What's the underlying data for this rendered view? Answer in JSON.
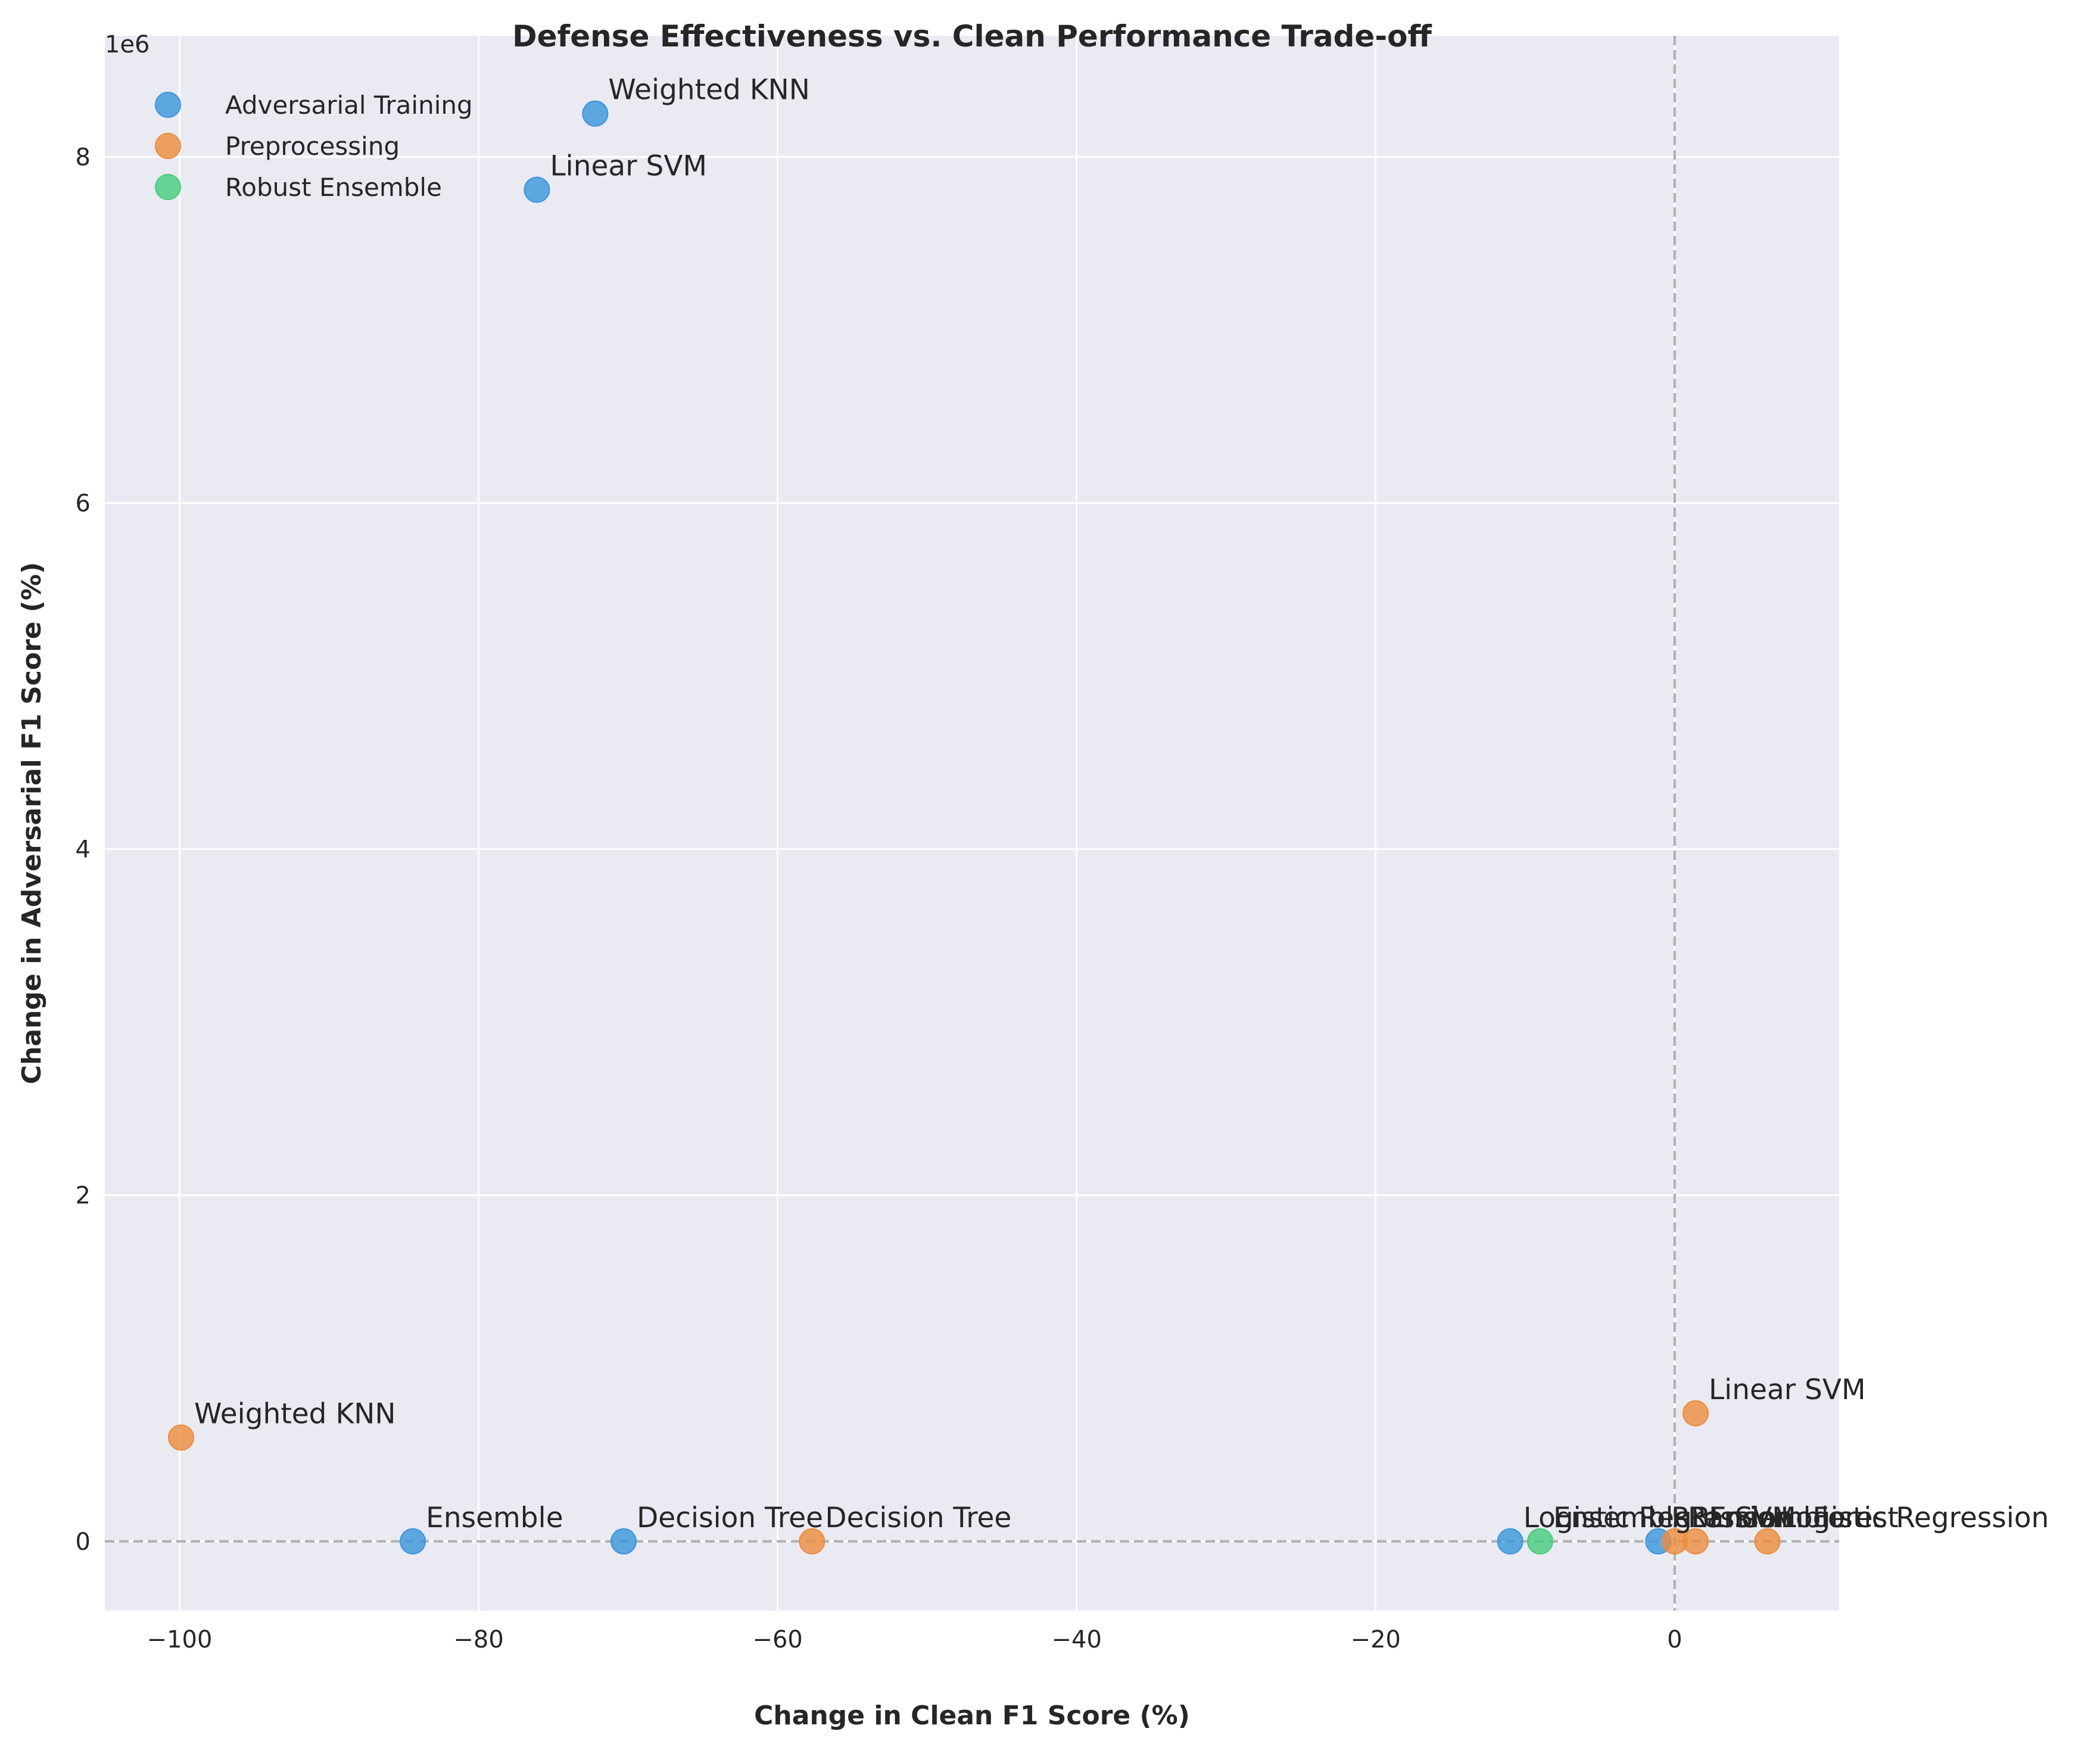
{
  "chart_data": {
    "type": "scatter",
    "title": "Defense Effectiveness vs. Clean Performance Trade-off",
    "xlabel": "Change in Clean F1 Score (%)",
    "ylabel": "Change in Adversarial F1 Score (%)",
    "y_offset_label": "1e6",
    "xlim": [
      -105,
      11
    ],
    "ylim": [
      -400000,
      8700000
    ],
    "xticks": [
      -100,
      -80,
      -60,
      -40,
      -20,
      0
    ],
    "yticks": [
      0,
      2000000,
      4000000,
      6000000,
      8000000
    ],
    "ytick_labels": [
      "0",
      "2",
      "4",
      "6",
      "8"
    ],
    "grid": true,
    "legend_position": "top-left",
    "reference_lines": {
      "x": 0,
      "y": 0
    },
    "series": [
      {
        "name": "Adversarial Training",
        "color": "#3a96dc",
        "points": [
          {
            "label": "Weighted KNN",
            "x": -72.2,
            "y": 8250000
          },
          {
            "label": "Linear SVM",
            "x": -76.1,
            "y": 7810000
          },
          {
            "label": "Ensemble",
            "x": -84.4,
            "y": 0
          },
          {
            "label": "Decision Tree",
            "x": -70.3,
            "y": 0
          },
          {
            "label": "Logistic Regression",
            "x": -11.0,
            "y": 0
          },
          {
            "label": "RBF SVM",
            "x": -1.1,
            "y": 0
          }
        ]
      },
      {
        "name": "Preprocessing",
        "color": "#ec8c3c",
        "points": [
          {
            "label": "Weighted KNN",
            "x": -99.9,
            "y": 600000
          },
          {
            "label": "Linear SVM",
            "x": 1.4,
            "y": 740000
          },
          {
            "label": "Decision Tree",
            "x": -57.7,
            "y": 0
          },
          {
            "label": "Random Forest",
            "x": 0.0,
            "y": 0
          },
          {
            "label": "Ensemble",
            "x": 1.4,
            "y": 0
          },
          {
            "label": "Logistic Regression",
            "x": 6.2,
            "y": 0
          }
        ]
      },
      {
        "name": "Robust Ensemble",
        "color": "#45cc7c",
        "points": [
          {
            "label": "Ensemble",
            "x": -9.0,
            "y": 0
          }
        ]
      }
    ]
  }
}
